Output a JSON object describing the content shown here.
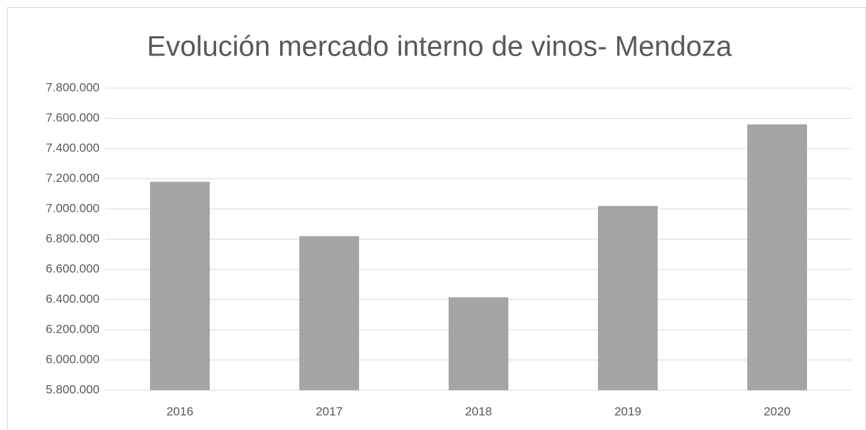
{
  "chart_data": {
    "type": "bar",
    "title": "Evolución mercado interno de vinos- Mendoza",
    "categories": [
      "2016",
      "2017",
      "2018",
      "2019",
      "2020"
    ],
    "values": [
      7180000,
      6820000,
      6415000,
      7020000,
      7560000
    ],
    "color": "#a5a5a5",
    "ylim": [
      5800000,
      7800000
    ],
    "yticks": [
      {
        "value": 5800000,
        "label": "5.800.000"
      },
      {
        "value": 6000000,
        "label": "6.000.000"
      },
      {
        "value": 6200000,
        "label": "6.200.000"
      },
      {
        "value": 6400000,
        "label": "6.400.000"
      },
      {
        "value": 6600000,
        "label": "6.600.000"
      },
      {
        "value": 6800000,
        "label": "6.800.000"
      },
      {
        "value": 7000000,
        "label": "7.000.000"
      },
      {
        "value": 7200000,
        "label": "7.200.000"
      },
      {
        "value": 7400000,
        "label": "7.400.000"
      },
      {
        "value": 7600000,
        "label": "7.600.000"
      },
      {
        "value": 7800000,
        "label": "7.800.000"
      }
    ],
    "grid": true
  }
}
